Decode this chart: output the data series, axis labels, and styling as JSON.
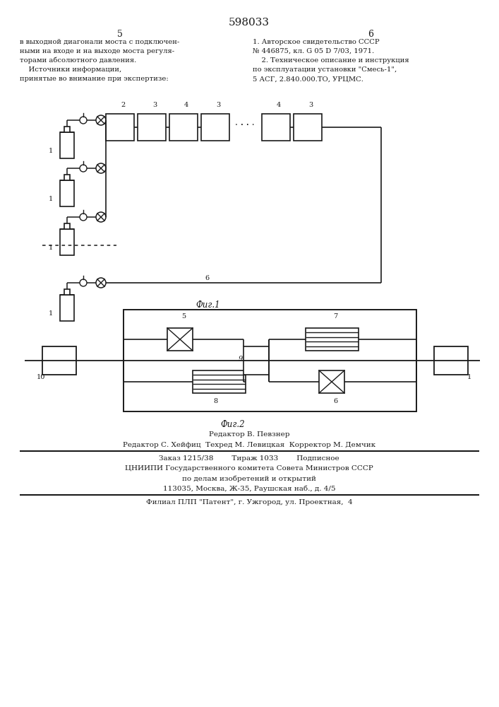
{
  "patent_number": "598033",
  "page_col_left": "5",
  "page_col_right": "6",
  "text_left_lines": [
    "в выходной диагонали моста с подключен-",
    "ными на входе и на выходе моста регуля-",
    "торами абсолютного давления.",
    "    Источники информации,",
    "принятые во внимание при экспертизе:"
  ],
  "text_right_lines": [
    "1. Авторское свидетельство СССР",
    "№ 446875, кл. G 05 D 7/03, 1971.",
    "    2. Техническое описание и инструкция",
    "по эксплуатации установки \"Смесь-1\",",
    "5 АСГ, 2.840.000.ТО, УРЦМС."
  ],
  "fig1_label": "Фиг.1",
  "fig2_label": "Фиг.2",
  "footer_line1": "Редактор В. Певзнер",
  "footer_line2": "Редактор С. Хейфиц  Техред М. Левицкая  Корректор М. Демчик",
  "footer_line3": "Заказ 1215/38        Тираж 1033        Подписное",
  "footer_line4": "ЦНИИПИ Государственного комитета Совета Министров СССР",
  "footer_line5": "по делам изобретений и открытий",
  "footer_line6": "113035, Москва, Ж-35, Раушская наб., д. 4/5",
  "footer_line7": "Филиал ПЛП \"Патент\", г. Ужгород, ул. Проектная,  4",
  "bg_color": "#ffffff",
  "line_color": "#1a1a1a"
}
